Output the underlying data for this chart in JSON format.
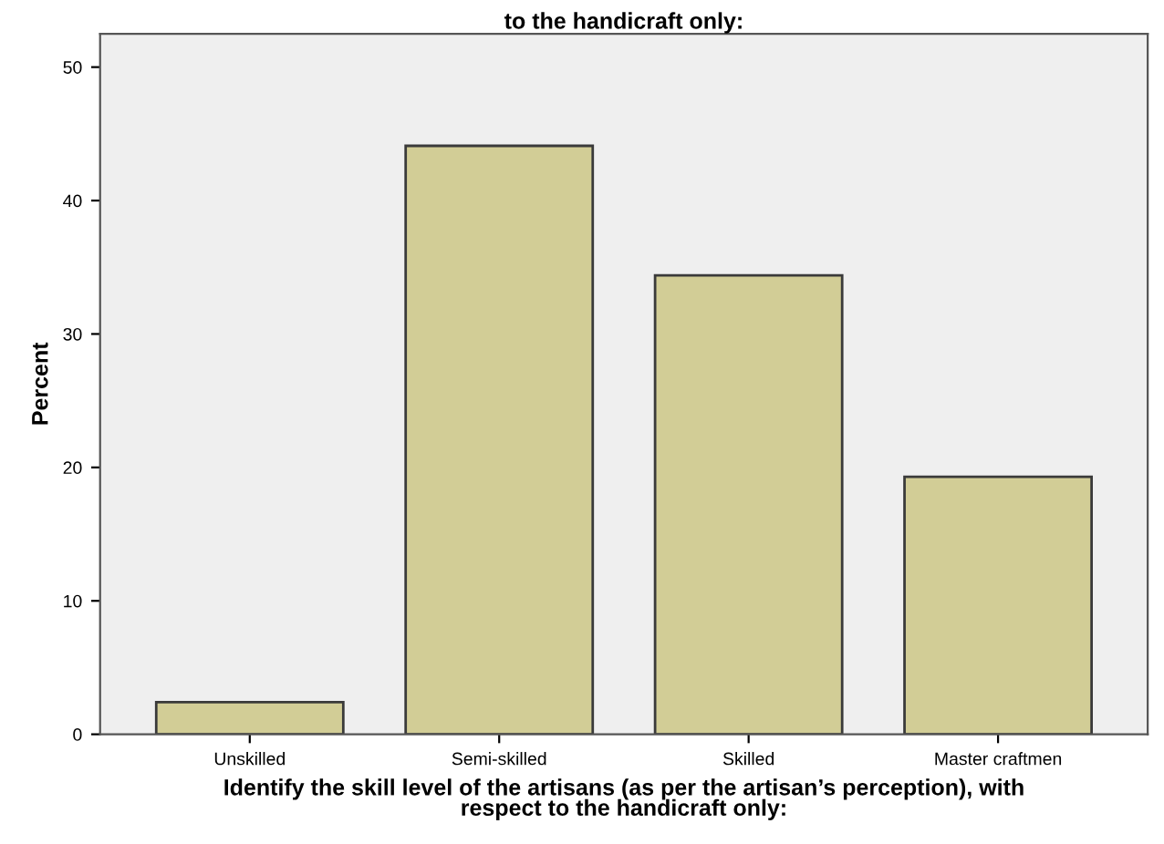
{
  "chart_data": {
    "type": "bar",
    "title": "to the handicraft only:",
    "xlabel": "Identify the skill level of the artisans (as per the artisan’s perception), with\nrespect to the handicraft only:",
    "ylabel": "Percent",
    "categories": [
      "Unskilled",
      "Semi-skilled",
      "Skilled",
      "Master craftmen"
    ],
    "values": [
      2.4,
      44.1,
      34.4,
      19.3
    ],
    "color": "#d2cd96",
    "ylim": [
      0,
      52.5
    ],
    "yticks": [
      0,
      10,
      20,
      30,
      40,
      50
    ],
    "grid": false
  }
}
